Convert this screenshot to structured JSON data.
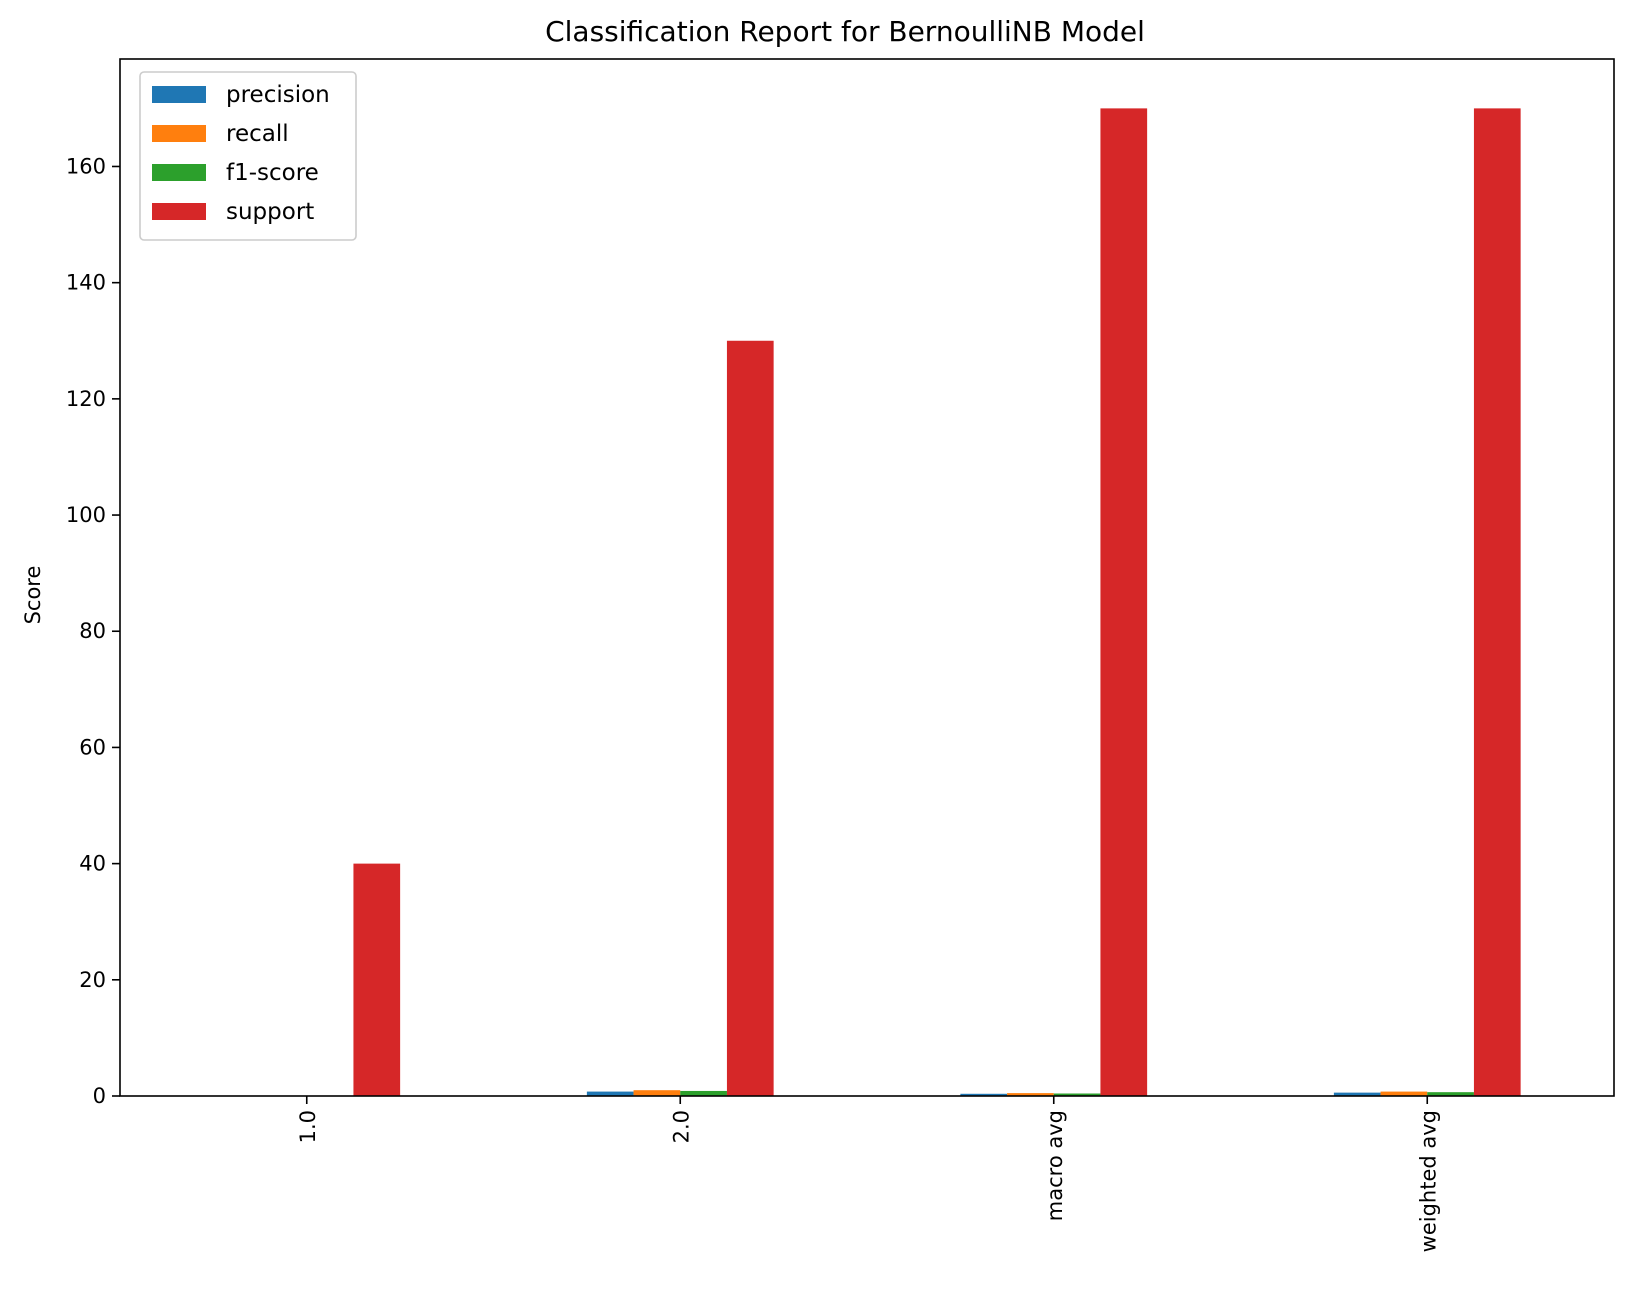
{
  "chart_data": {
    "type": "bar",
    "title": "Classification Report for BernoulliNB Model",
    "xlabel": "",
    "ylabel": "Score",
    "categories": [
      "1.0",
      "2.0",
      "macro avg",
      "weighted avg"
    ],
    "series": [
      {
        "name": "precision",
        "color": "#1f77b4",
        "values": [
          0.0,
          0.76,
          0.38,
          0.58
        ]
      },
      {
        "name": "recall",
        "color": "#ff7f0e",
        "values": [
          0.0,
          1.0,
          0.5,
          0.76
        ]
      },
      {
        "name": "f1-score",
        "color": "#2ca02c",
        "values": [
          0.0,
          0.87,
          0.43,
          0.66
        ]
      },
      {
        "name": "support",
        "color": "#d62728",
        "values": [
          40,
          130,
          170,
          170
        ]
      }
    ],
    "yticks": [
      0,
      20,
      40,
      60,
      80,
      100,
      120,
      140,
      160
    ],
    "ylim": [
      0,
      178.5
    ],
    "grid": false,
    "legend": "upper left"
  }
}
